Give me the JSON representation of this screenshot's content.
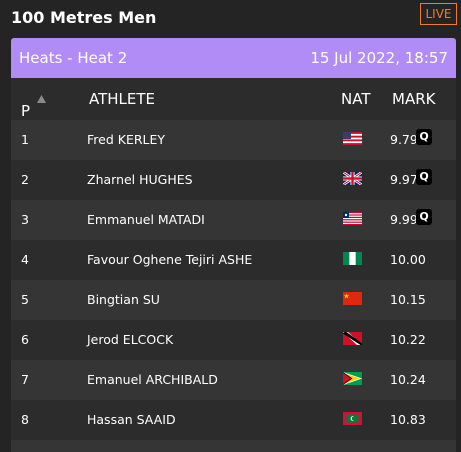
{
  "title": "100 Metres Men",
  "live_label": "LIVE",
  "banner": {
    "event": "Heats - Heat 2",
    "datetime": "15 Jul 2022, 18:57"
  },
  "columns": {
    "position": "P",
    "sort_icon": "sort-up-icon",
    "athlete": "ATHLETE",
    "nat": "NAT",
    "mark": "MARK"
  },
  "results": [
    {
      "pos": "1",
      "name": "Fred KERLEY",
      "flag": "usa-flag-icon",
      "mark": "9.79",
      "q": "Q"
    },
    {
      "pos": "2",
      "name": "Zharnel HUGHES",
      "flag": "gbr-flag-icon",
      "mark": "9.97",
      "q": "Q"
    },
    {
      "pos": "3",
      "name": "Emmanuel MATADI",
      "flag": "lbr-flag-icon",
      "mark": "9.99",
      "q": "Q"
    },
    {
      "pos": "4",
      "name": "Favour Oghene Tejiri ASHE",
      "flag": "ngr-flag-icon",
      "mark": "10.00",
      "q": ""
    },
    {
      "pos": "5",
      "name": "Bingtian SU",
      "flag": "chn-flag-icon",
      "mark": "10.15",
      "q": ""
    },
    {
      "pos": "6",
      "name": "Jerod ELCOCK",
      "flag": "tto-flag-icon",
      "mark": "10.22",
      "q": ""
    },
    {
      "pos": "7",
      "name": "Emanuel ARCHIBALD",
      "flag": "guy-flag-icon",
      "mark": "10.24",
      "q": ""
    },
    {
      "pos": "8",
      "name": "Hassan SAAID",
      "flag": "mdv-flag-icon",
      "mark": "10.83",
      "q": ""
    }
  ],
  "colors": {
    "accent": "#b18cf6",
    "live": "#f07a2e",
    "background": "#242424"
  }
}
